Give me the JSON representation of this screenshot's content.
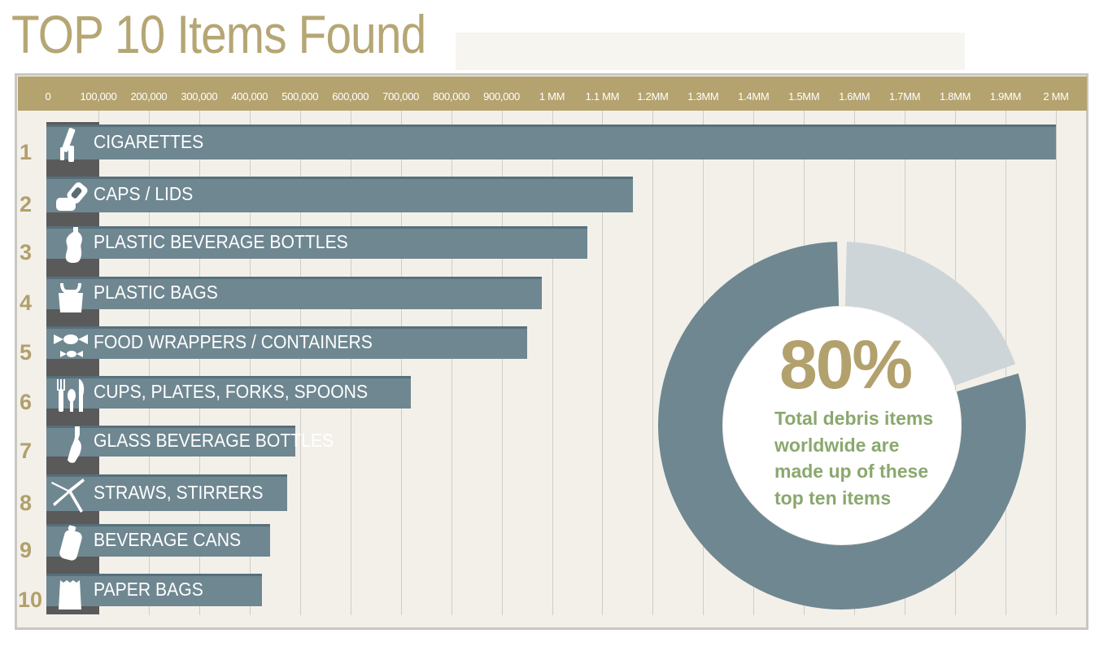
{
  "title": "TOP 10 Items Found",
  "colors": {
    "accent": "#b4a36f",
    "bar": "#6f8791",
    "light_slice": "#cdd5d9",
    "green_text": "#8aa86e"
  },
  "axis": {
    "ticks": [
      {
        "value": 0,
        "label": "0"
      },
      {
        "value": 100000,
        "label": "100,000"
      },
      {
        "value": 200000,
        "label": "200,000"
      },
      {
        "value": 300000,
        "label": "300,000"
      },
      {
        "value": 400000,
        "label": "400,000"
      },
      {
        "value": 500000,
        "label": "500,000"
      },
      {
        "value": 600000,
        "label": "600,000"
      },
      {
        "value": 700000,
        "label": "700,000"
      },
      {
        "value": 800000,
        "label": "800,000"
      },
      {
        "value": 900000,
        "label": "900,000"
      },
      {
        "value": 1000000,
        "label": "1 MM"
      },
      {
        "value": 1100000,
        "label": "1.1 MM"
      },
      {
        "value": 1200000,
        "label": "1.2MM"
      },
      {
        "value": 1300000,
        "label": "1.3MM"
      },
      {
        "value": 1400000,
        "label": "1.4MM"
      },
      {
        "value": 1500000,
        "label": "1.5MM"
      },
      {
        "value": 1600000,
        "label": "1.6MM"
      },
      {
        "value": 1700000,
        "label": "1.7MM"
      },
      {
        "value": 1800000,
        "label": "1.8MM"
      },
      {
        "value": 1900000,
        "label": "1.9MM"
      },
      {
        "value": 2000000,
        "label": "2 MM"
      }
    ]
  },
  "chart_data": [
    {
      "type": "bar",
      "orientation": "horizontal",
      "title": "TOP 10 Items Found",
      "xlim": [
        0,
        2000000
      ],
      "grid": true,
      "categories": [
        "CIGARETTES",
        "CAPS / LIDS",
        "PLASTIC BEVERAGE BOTTLES",
        "PLASTIC BAGS",
        "FOOD WRAPPERS / CONTAINERS",
        "CUPS, PLATES, FORKS, SPOONS",
        "GLASS BEVERAGE BOTTLES",
        "STRAWS, STIRRERS",
        "BEVERAGE CANS",
        "PAPER BAGS"
      ],
      "ranks": [
        "1",
        "2",
        "3",
        "4",
        "5",
        "6",
        "7",
        "8",
        "9",
        "10"
      ],
      "icons": [
        "cigarette-icon",
        "cap-icon",
        "plastic-bottle-icon",
        "plastic-bag-icon",
        "candy-wrapper-icon",
        "cutlery-icon",
        "glass-bottle-icon",
        "straw-icon",
        "can-icon",
        "paper-bag-icon"
      ],
      "values": [
        2000000,
        1160000,
        1070000,
        980000,
        950000,
        720000,
        490000,
        475000,
        440000,
        425000
      ]
    },
    {
      "type": "pie",
      "style": "donut",
      "values": [
        80,
        20
      ],
      "label": "80%",
      "text": "Total debris items worldwide are made up of these top ten items"
    }
  ]
}
